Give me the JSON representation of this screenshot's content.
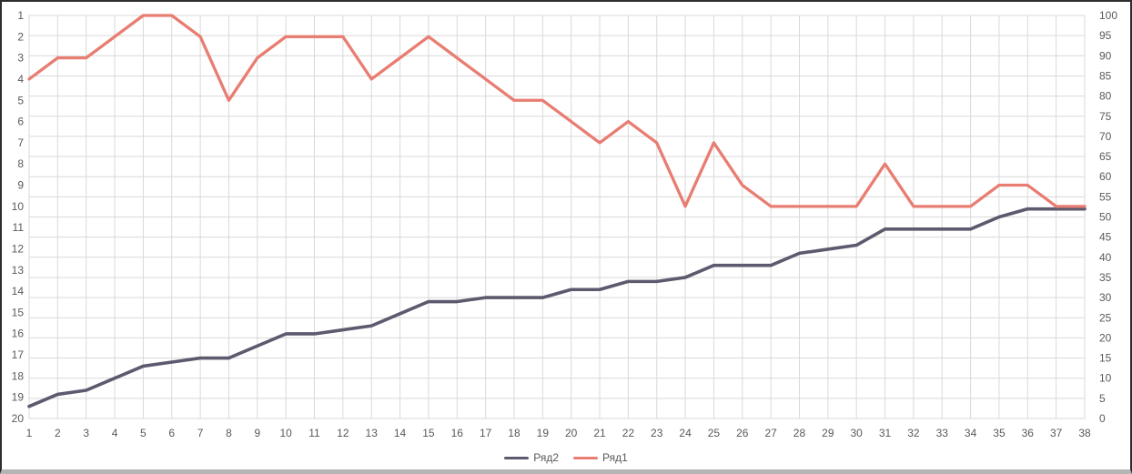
{
  "frame": {
    "background": "#ffffff",
    "border_color": "#2e2e2e",
    "bottom_bar_color": "#b5b5b5"
  },
  "styles": {
    "grid_color": "#d9d9d9",
    "plot_border_color": "#d9d9d9",
    "axis_text_color": "#595959"
  },
  "chart_data": {
    "type": "line",
    "title": "",
    "xlabel": "",
    "ylabel": "",
    "grid": true,
    "legend_position": "bottom",
    "x_ticks": [
      "1",
      "2",
      "3",
      "4",
      "5",
      "6",
      "7",
      "8",
      "9",
      "10",
      "11",
      "12",
      "13",
      "14",
      "15",
      "16",
      "17",
      "18",
      "19",
      "20",
      "21",
      "22",
      "23",
      "24",
      "25",
      "26",
      "27",
      "28",
      "29",
      "30",
      "31",
      "32",
      "33",
      "34",
      "35",
      "36",
      "37",
      "38"
    ],
    "left_axis": {
      "min": 1,
      "max": 20,
      "step": 1,
      "reversed": true,
      "ticks": [
        "1",
        "2",
        "3",
        "4",
        "5",
        "6",
        "7",
        "8",
        "9",
        "10",
        "11",
        "12",
        "13",
        "14",
        "15",
        "16",
        "17",
        "18",
        "19",
        "20"
      ]
    },
    "right_axis": {
      "min": 0,
      "max": 100,
      "step": 5,
      "ticks": [
        "100",
        "95",
        "90",
        "85",
        "80",
        "75",
        "70",
        "65",
        "60",
        "55",
        "50",
        "45",
        "40",
        "35",
        "30",
        "25",
        "20",
        "15",
        "10",
        "5",
        "0"
      ]
    },
    "series": [
      {
        "name": "Ряд2",
        "axis": "right",
        "color": "#5b5a6e",
        "stroke_width": 3.6,
        "values": [
          3,
          6,
          7,
          10,
          13,
          14,
          15,
          15,
          18,
          21,
          21,
          22,
          23,
          26,
          29,
          29,
          30,
          30,
          30,
          32,
          32,
          34,
          34,
          35,
          38,
          38,
          38,
          41,
          42,
          43,
          47,
          47,
          47,
          47,
          50,
          52,
          52,
          52
        ]
      },
      {
        "name": "Ряд1",
        "axis": "left",
        "color": "#e87d72",
        "stroke_width": 3.3,
        "values": [
          4,
          3,
          3,
          2,
          1,
          1,
          2,
          5,
          3,
          2,
          2,
          2,
          4,
          3,
          2,
          3,
          4,
          5,
          5,
          6,
          7,
          6,
          7,
          10,
          7,
          9,
          10,
          10,
          10,
          10,
          8,
          10,
          10,
          10,
          9,
          9,
          10,
          10
        ]
      }
    ]
  }
}
